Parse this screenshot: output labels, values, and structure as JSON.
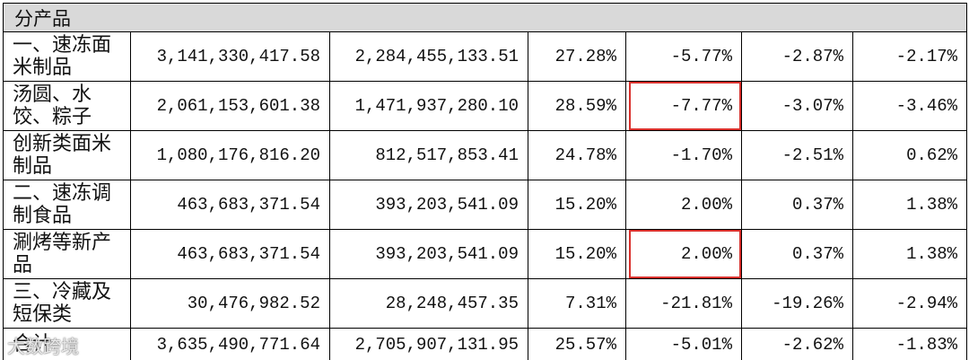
{
  "header": {
    "title": "分产品"
  },
  "table": {
    "rows": [
      {
        "label": "一、速冻面米制品",
        "cells": [
          "3,141,330,417.58",
          "2,284,455,133.51",
          "27.28%",
          "-5.77%",
          "-2.87%",
          "-2.17%"
        ]
      },
      {
        "label": "汤圆、水饺、粽子",
        "cells": [
          "2,061,153,601.38",
          "1,471,937,280.10",
          "28.59%",
          "-7.77%",
          "-3.07%",
          "-3.46%"
        ]
      },
      {
        "label": "创新类面米制品",
        "cells": [
          "1,080,176,816.20",
          "812,517,853.41",
          "24.78%",
          "-1.70%",
          "-2.51%",
          "0.62%"
        ]
      },
      {
        "label": "二、速冻调制食品",
        "cells": [
          "463,683,371.54",
          "393,203,541.09",
          "15.20%",
          "2.00%",
          "0.37%",
          "1.38%"
        ]
      },
      {
        "label": "涮烤等新产品",
        "cells": [
          "463,683,371.54",
          "393,203,541.09",
          "15.20%",
          "2.00%",
          "0.37%",
          "1.38%"
        ]
      },
      {
        "label": "三、冷藏及短保类",
        "cells": [
          "30,476,982.52",
          "28,248,457.35",
          "7.31%",
          "-21.81%",
          "-19.26%",
          "-2.94%"
        ]
      },
      {
        "label": "合计",
        "cells": [
          "3,635,490,771.64",
          "2,705,907,131.95",
          "25.57%",
          "-5.01%",
          "-2.62%",
          "-1.83%"
        ]
      }
    ],
    "highlighted": [
      [
        1,
        3
      ],
      [
        4,
        3
      ]
    ]
  },
  "watermark": "大数跨境"
}
